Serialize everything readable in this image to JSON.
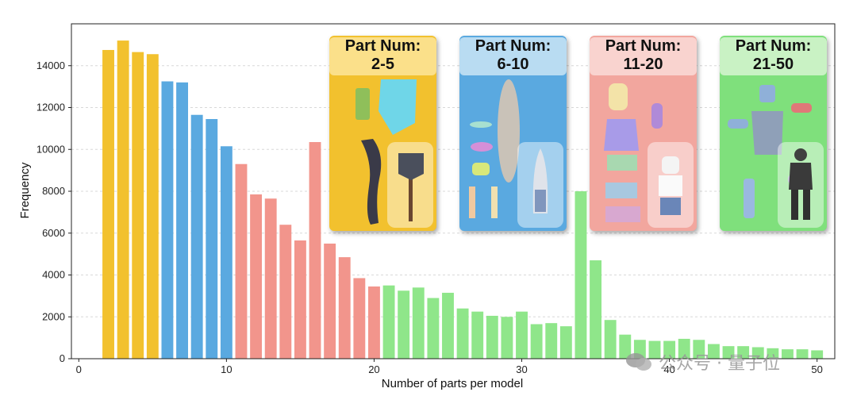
{
  "chart_data": {
    "type": "bar",
    "xlabel": "Number of parts per model",
    "ylabel": "Frequency",
    "xlim": [
      -0.5,
      51.2
    ],
    "ylim": [
      0,
      16000
    ],
    "xticks": [
      0,
      10,
      20,
      30,
      40,
      50
    ],
    "yticks": [
      0,
      2000,
      4000,
      6000,
      8000,
      10000,
      12000,
      14000
    ],
    "grid": "horizontal-dashed",
    "groups": [
      {
        "label": "Part Num: 2-5",
        "range": [
          2,
          5
        ],
        "color": "#f2c12e"
      },
      {
        "label": "Part Num: 6-10",
        "range": [
          6,
          10
        ],
        "color": "#5aa9e0"
      },
      {
        "label": "Part Num: 11-20",
        "range": [
          11,
          20
        ],
        "color": "#f2958c"
      },
      {
        "label": "Part Num: 21-50",
        "range": [
          21,
          50
        ],
        "color": "#8fe68a"
      }
    ],
    "x": [
      2,
      3,
      4,
      5,
      6,
      7,
      8,
      9,
      10,
      11,
      12,
      13,
      14,
      15,
      16,
      17,
      18,
      19,
      20,
      21,
      22,
      23,
      24,
      25,
      26,
      27,
      28,
      29,
      30,
      31,
      32,
      33,
      34,
      35,
      36,
      37,
      38,
      39,
      40,
      41,
      42,
      43,
      44,
      45,
      46,
      47,
      48,
      49,
      50
    ],
    "values": [
      14750,
      15200,
      14650,
      14550,
      13250,
      13200,
      11650,
      11450,
      10150,
      9300,
      7850,
      7650,
      6400,
      5650,
      10350,
      5500,
      4850,
      3850,
      3450,
      3500,
      3250,
      3400,
      2900,
      3150,
      2400,
      2250,
      2050,
      2000,
      2250,
      1650,
      1700,
      1550,
      8000,
      4700,
      1850,
      1150,
      900,
      850,
      850,
      950,
      900,
      700,
      600,
      600,
      550,
      500,
      450,
      450,
      400
    ]
  },
  "cards": [
    {
      "line1": "Part Num:",
      "line2": "2-5"
    },
    {
      "line1": "Part Num:",
      "line2": "6-10"
    },
    {
      "line1": "Part Num:",
      "line2": "11-20"
    },
    {
      "line1": "Part Num:",
      "line2": "21-50"
    }
  ],
  "watermark": "公众号 · 量子位"
}
